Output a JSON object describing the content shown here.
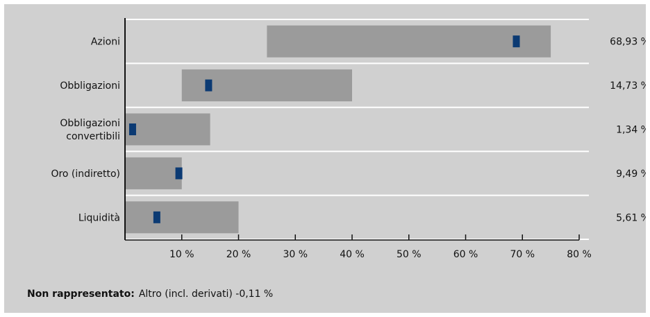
{
  "chart_data": {
    "type": "bar",
    "subtype": "bullet-range",
    "categories": [
      "Azioni",
      "Obbligazioni",
      "Obbligazioni convertibili",
      "Oro (indiretto)",
      "Liquidità"
    ],
    "category_lines": [
      [
        "Azioni"
      ],
      [
        "Obbligazioni"
      ],
      [
        "Obbligazioni",
        "convertibili"
      ],
      [
        "Oro (indiretto)"
      ],
      [
        "Liquidità"
      ]
    ],
    "range_min": [
      25,
      10,
      0,
      0,
      0
    ],
    "range_max": [
      75,
      40,
      15,
      10,
      20
    ],
    "values": [
      68.93,
      14.73,
      1.34,
      9.49,
      5.61
    ],
    "value_labels": [
      "68,93 %",
      "14,73 %",
      "1,34 %",
      "9,49 %",
      "5,61 %"
    ],
    "xlim": [
      0,
      80
    ],
    "x_ticks": [
      10,
      20,
      30,
      40,
      50,
      60,
      70,
      80
    ],
    "x_tick_labels": [
      "10 %",
      "20 %",
      "30 %",
      "40 %",
      "50 %",
      "60 %",
      "70 %",
      "80 %"
    ],
    "colors": {
      "panel": "#d0d0d0",
      "range_bar": "#9b9b9b",
      "marker": "#0b3a73",
      "divider": "#ffffff",
      "axis": "#111111"
    }
  },
  "footnote": {
    "label": "Non rappresentato:",
    "text": "Altro (incl. derivati) -0,11 %"
  }
}
